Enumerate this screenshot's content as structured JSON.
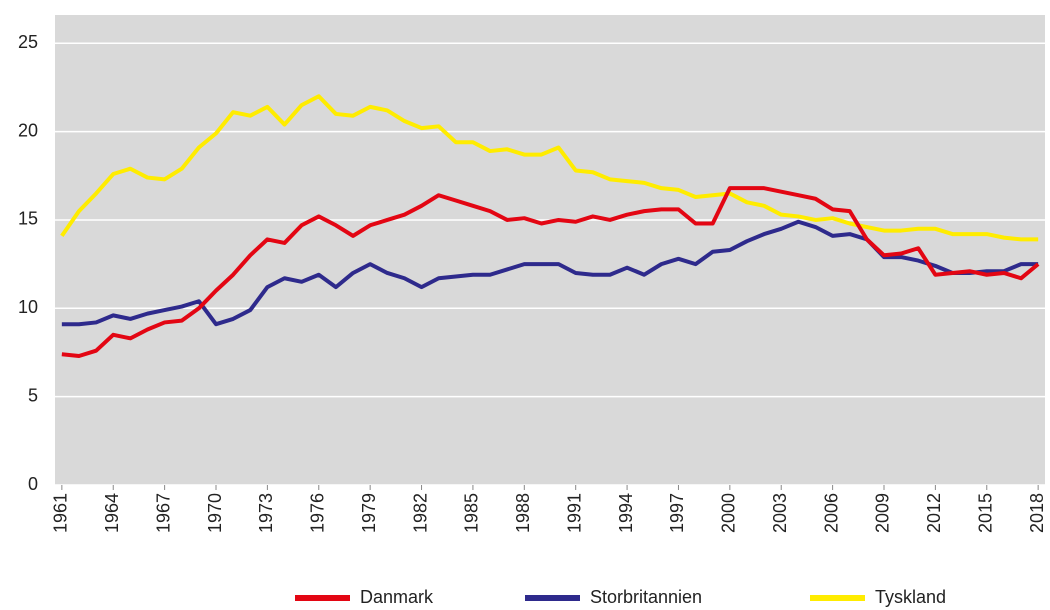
{
  "chart_data": {
    "type": "line",
    "x": [
      1961,
      1962,
      1963,
      1964,
      1965,
      1966,
      1967,
      1968,
      1969,
      1970,
      1971,
      1972,
      1973,
      1974,
      1975,
      1976,
      1977,
      1978,
      1979,
      1980,
      1981,
      1982,
      1983,
      1984,
      1985,
      1986,
      1987,
      1988,
      1989,
      1990,
      1991,
      1992,
      1993,
      1994,
      1995,
      1996,
      1997,
      1998,
      1999,
      2000,
      2001,
      2002,
      2003,
      2004,
      2005,
      2006,
      2007,
      2008,
      2009,
      2010,
      2011,
      2012,
      2013,
      2014,
      2015,
      2016,
      2017,
      2018
    ],
    "series": [
      {
        "name": "Danmark",
        "color": "#e30613",
        "values": [
          7.4,
          7.3,
          7.6,
          8.5,
          8.3,
          8.8,
          9.2,
          9.3,
          10.0,
          11.0,
          11.9,
          13.0,
          13.9,
          13.7,
          14.7,
          15.2,
          14.7,
          14.1,
          14.7,
          15.0,
          15.3,
          15.8,
          16.4,
          16.1,
          15.8,
          15.5,
          15.0,
          15.1,
          14.8,
          15.0,
          14.9,
          15.2,
          15.0,
          15.3,
          15.5,
          15.6,
          15.6,
          14.8,
          14.8,
          16.8,
          16.8,
          16.8,
          16.6,
          16.4,
          16.2,
          15.6,
          15.5,
          13.9,
          13.0,
          13.1,
          13.4,
          11.9,
          12.0,
          12.1,
          11.9,
          12.0,
          11.7,
          12.5
        ]
      },
      {
        "name": "Storbritannien",
        "color": "#2e2a8c",
        "values": [
          9.1,
          9.1,
          9.2,
          9.6,
          9.4,
          9.7,
          9.9,
          10.1,
          10.4,
          9.1,
          9.4,
          9.9,
          11.2,
          11.7,
          11.5,
          11.9,
          11.2,
          12.0,
          12.5,
          12.0,
          11.7,
          11.2,
          11.7,
          11.8,
          11.9,
          11.9,
          12.2,
          12.5,
          12.5,
          12.5,
          12.0,
          11.9,
          11.9,
          12.3,
          11.9,
          12.5,
          12.8,
          12.5,
          13.2,
          13.3,
          13.8,
          14.2,
          14.5,
          14.9,
          14.6,
          14.1,
          14.2,
          13.9,
          12.9,
          12.9,
          12.7,
          12.4,
          12.0,
          12.0,
          12.1,
          12.1,
          12.5,
          12.5
        ]
      },
      {
        "name": "Tyskland",
        "color": "#ffec00",
        "values": [
          14.1,
          15.5,
          16.5,
          17.6,
          17.9,
          17.4,
          17.3,
          17.9,
          19.1,
          19.9,
          21.1,
          20.9,
          21.4,
          20.4,
          21.5,
          22.0,
          21.0,
          20.9,
          21.4,
          21.2,
          20.6,
          20.2,
          20.3,
          19.4,
          19.4,
          18.9,
          19.0,
          18.7,
          18.7,
          19.1,
          17.8,
          17.7,
          17.3,
          17.2,
          17.1,
          16.8,
          16.7,
          16.3,
          16.4,
          16.5,
          16.0,
          15.8,
          15.3,
          15.2,
          15.0,
          15.1,
          14.8,
          14.6,
          14.4,
          14.4,
          14.5,
          14.5,
          14.2,
          14.2,
          14.2,
          14.0,
          13.9,
          13.9
        ]
      }
    ],
    "xlim": [
      1960.6,
      2018.4
    ],
    "xticks": [
      1961,
      1964,
      1967,
      1970,
      1973,
      1976,
      1979,
      1982,
      1985,
      1988,
      1991,
      1994,
      1997,
      2000,
      2003,
      2006,
      2009,
      2012,
      2015,
      2018
    ],
    "ylim": [
      0,
      26.6
    ],
    "yticks": [
      0,
      5,
      10,
      15,
      20,
      25
    ],
    "grid": true,
    "background": "#d9d9d9",
    "legend": "bottom"
  }
}
